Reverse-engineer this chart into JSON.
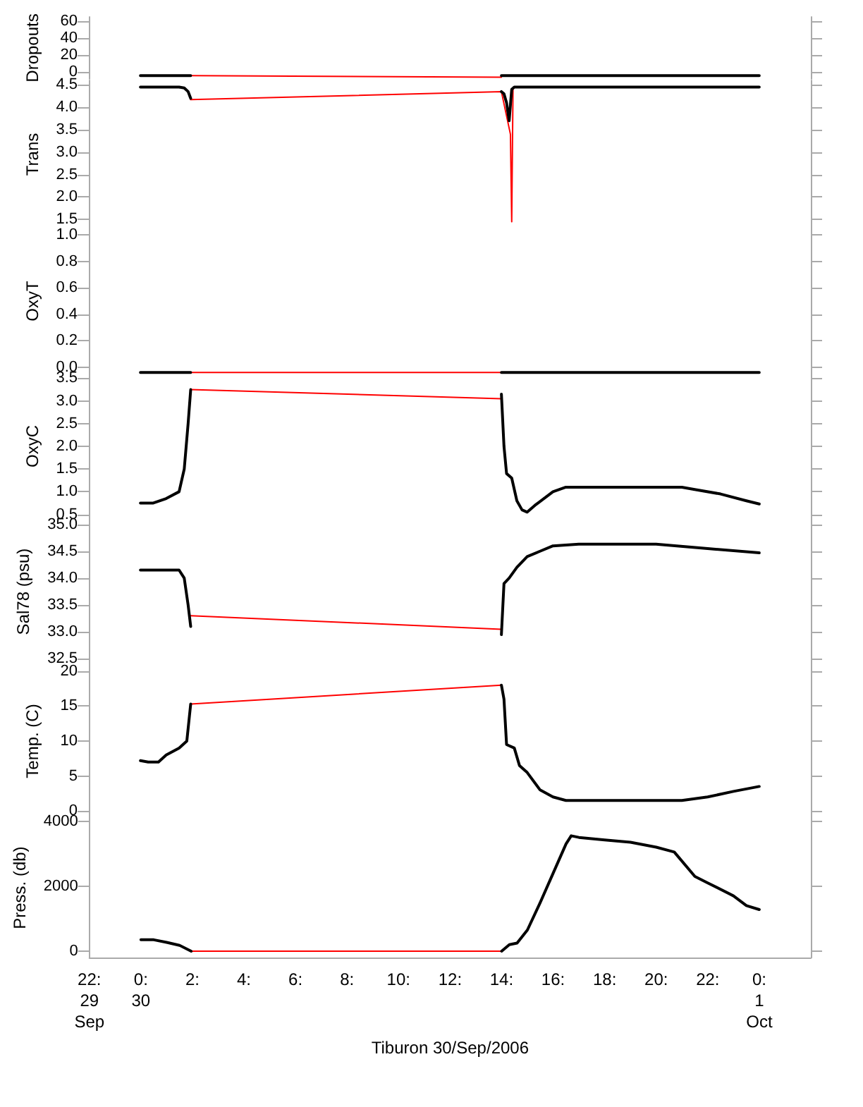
{
  "chart_data": [
    {
      "type": "line",
      "ylabel": "Dropouts",
      "xlim": [
        -2,
        26
      ],
      "ylim": [
        -8,
        65
      ],
      "yticks": [
        0,
        20,
        40,
        60
      ],
      "tick_labels": "y",
      "series": [
        {
          "color": "#000000",
          "x": [
            0,
            0.5,
            1,
            1.5,
            1.95,
            8,
            14,
            14.5,
            16,
            18,
            20,
            22,
            24
          ],
          "values": [
            -4,
            -4,
            -4,
            -4,
            -4,
            null,
            -4,
            -4,
            -4,
            -4,
            -4,
            -4,
            -4
          ]
        },
        {
          "color": "#ff0000",
          "x": [
            1.95,
            14
          ],
          "values": [
            -4,
            -6
          ]
        }
      ]
    },
    {
      "type": "line",
      "ylabel": "Trans",
      "xlim": [
        -2,
        26
      ],
      "ylim": [
        1.3,
        4.6
      ],
      "yticks": [
        {
          "value": 1.5,
          "label": "1.5"
        },
        {
          "value": 2,
          "label": "2.0"
        },
        {
          "value": 2.5,
          "label": "2.5"
        },
        {
          "value": 3,
          "label": "3.0"
        },
        {
          "value": 3.5,
          "label": "3.5"
        },
        {
          "value": 4,
          "label": "4.0"
        },
        {
          "value": 4.5,
          "label": "4.5"
        }
      ],
      "tick_labels": "y",
      "series": [
        {
          "color": "#000000",
          "x": [
            0,
            0.5,
            1,
            1.5,
            1.7,
            1.85,
            1.95,
            8,
            14,
            14.1,
            14.2,
            14.3,
            14.4,
            14.5,
            15,
            16,
            18,
            20,
            22,
            24
          ],
          "values": [
            4.45,
            4.45,
            4.45,
            4.45,
            4.43,
            4.35,
            4.2,
            null,
            4.35,
            4.3,
            4.1,
            3.7,
            4.4,
            4.45,
            4.45,
            4.45,
            4.45,
            4.45,
            4.45,
            4.45
          ]
        },
        {
          "color": "#ff0000",
          "x": [
            1.95,
            14,
            14.35,
            14.4,
            14.45,
            14.5
          ],
          "values": [
            4.17,
            4.35,
            3.4,
            1.45,
            4.4,
            4.45
          ]
        }
      ]
    },
    {
      "type": "line",
      "ylabel": "OxyT",
      "xlim": [
        -2,
        26
      ],
      "ylim": [
        -0.05,
        1.05
      ],
      "yticks": [
        {
          "value": 0,
          "label": "0.0"
        },
        {
          "value": 0.2,
          "label": "0.2"
        },
        {
          "value": 0.4,
          "label": "0.4"
        },
        {
          "value": 0.6,
          "label": "0.6"
        },
        {
          "value": 0.8,
          "label": "0.8"
        },
        {
          "value": 1,
          "label": "1.0"
        }
      ],
      "tick_labels": "y",
      "series": [
        {
          "color": "#000000",
          "x": [
            0,
            1.95,
            8,
            14,
            24
          ],
          "values": [
            -0.04,
            -0.04,
            null,
            -0.04,
            -0.04
          ]
        },
        {
          "color": "#ff0000",
          "x": [
            1.95,
            14
          ],
          "values": [
            -0.04,
            -0.04
          ]
        }
      ]
    },
    {
      "type": "line",
      "ylabel": "OxyC",
      "xlim": [
        -2,
        26
      ],
      "ylim": [
        0.4,
        3.6
      ],
      "yticks": [
        {
          "value": 0.5,
          "label": "0.5"
        },
        {
          "value": 1,
          "label": "1.0"
        },
        {
          "value": 1.5,
          "label": "1.5"
        },
        {
          "value": 2,
          "label": "2.0"
        },
        {
          "value": 2.5,
          "label": "2.5"
        },
        {
          "value": 3,
          "label": "3.0"
        },
        {
          "value": 3.5,
          "label": "3.5"
        }
      ],
      "tick_labels": "y",
      "series": [
        {
          "color": "#000000",
          "x": [
            0,
            0.5,
            1,
            1.5,
            1.7,
            1.85,
            1.95,
            8,
            14,
            14.1,
            14.2,
            14.4,
            14.6,
            14.8,
            15,
            15.3,
            16,
            16.5,
            18,
            20,
            21,
            21.5,
            22.5,
            23.5,
            24
          ],
          "values": [
            0.75,
            0.75,
            0.85,
            1,
            1.5,
            2.5,
            3.25,
            null,
            3.15,
            2,
            1.4,
            1.3,
            0.8,
            0.6,
            0.55,
            0.7,
            1,
            1.1,
            1.1,
            1.1,
            1.1,
            1.05,
            0.95,
            0.8,
            0.73
          ]
        },
        {
          "color": "#ff0000",
          "x": [
            1.95,
            14
          ],
          "values": [
            3.25,
            3.05
          ]
        }
      ]
    },
    {
      "type": "line",
      "ylabel": "Sal78 (psu)",
      "xlim": [
        -2,
        26
      ],
      "ylim": [
        32.4,
        35.1
      ],
      "yticks": [
        {
          "value": 32.5,
          "label": "32.5"
        },
        {
          "value": 33,
          "label": "33.0"
        },
        {
          "value": 33.5,
          "label": "33.5"
        },
        {
          "value": 34,
          "label": "34.0"
        },
        {
          "value": 34.5,
          "label": "34.5"
        },
        {
          "value": 35,
          "label": "35.0"
        }
      ],
      "tick_labels": "y",
      "series": [
        {
          "color": "#000000",
          "x": [
            0,
            0.5,
            1,
            1.5,
            1.7,
            1.85,
            1.95,
            8,
            14,
            14.1,
            14.3,
            14.6,
            15,
            15.5,
            16,
            17,
            18,
            20,
            22,
            24
          ],
          "values": [
            34.15,
            34.15,
            34.15,
            34.15,
            34,
            33.5,
            33.1,
            null,
            32.95,
            33.9,
            34,
            34.2,
            34.4,
            34.5,
            34.6,
            34.63,
            34.63,
            34.63,
            34.55,
            34.47
          ]
        },
        {
          "color": "#ff0000",
          "x": [
            1.95,
            14
          ],
          "values": [
            33.3,
            33.05
          ]
        }
      ]
    },
    {
      "type": "line",
      "ylabel": "Temp. (C)",
      "xlim": [
        -2,
        26
      ],
      "ylim": [
        -1,
        21
      ],
      "yticks": [
        0,
        5,
        10,
        15,
        20
      ],
      "tick_labels": "y",
      "series": [
        {
          "color": "#000000",
          "x": [
            0,
            0.3,
            0.7,
            1,
            1.5,
            1.8,
            1.95,
            8,
            14,
            14.1,
            14.2,
            14.5,
            14.7,
            15,
            15.5,
            16,
            16.5,
            18,
            20,
            21,
            22,
            23,
            24
          ],
          "values": [
            7.2,
            7,
            7,
            8,
            9,
            10,
            15.3,
            null,
            18,
            16,
            9.5,
            9,
            6.5,
            5.5,
            3,
            2,
            1.5,
            1.5,
            1.5,
            1.5,
            2,
            2.8,
            3.5
          ]
        },
        {
          "color": "#ff0000",
          "x": [
            1.95,
            14
          ],
          "values": [
            15.3,
            18
          ]
        }
      ]
    },
    {
      "type": "line",
      "ylabel": "Press. (db)",
      "xlabel": "Tiburon 30/Sep/2006",
      "xlim": [
        -2,
        26
      ],
      "ylim": [
        -200,
        4100
      ],
      "yticks": [
        0,
        2000,
        4000
      ],
      "xticks": [
        {
          "value": -2,
          "label": "22:\n29\nSep"
        },
        {
          "value": 0,
          "label": "0:\n30"
        },
        {
          "value": 2,
          "label": "2:"
        },
        {
          "value": 4,
          "label": "4:"
        },
        {
          "value": 6,
          "label": "6:"
        },
        {
          "value": 8,
          "label": "8:"
        },
        {
          "value": 10,
          "label": "10:"
        },
        {
          "value": 12,
          "label": "12:"
        },
        {
          "value": 14,
          "label": "14:"
        },
        {
          "value": 16,
          "label": "16:"
        },
        {
          "value": 18,
          "label": "18:"
        },
        {
          "value": 20,
          "label": "20:"
        },
        {
          "value": 22,
          "label": "22:"
        },
        {
          "value": 24,
          "label": "0:\n1\nOct"
        }
      ],
      "series": [
        {
          "color": "#000000",
          "x": [
            0,
            0.5,
            1,
            1.5,
            1.95,
            8,
            14,
            14.3,
            14.6,
            15,
            15.5,
            16,
            16.5,
            16.7,
            17,
            18,
            19,
            20,
            20.7,
            21.5,
            22,
            23,
            23.5,
            24
          ],
          "values": [
            350,
            350,
            270,
            180,
            0,
            null,
            0,
            200,
            250,
            650,
            1500,
            2400,
            3300,
            3550,
            3500,
            3420,
            3350,
            3200,
            3050,
            2300,
            2100,
            1700,
            1400,
            1280
          ]
        },
        {
          "color": "#ff0000",
          "x": [
            1.95,
            14
          ],
          "values": [
            0,
            0
          ]
        }
      ]
    }
  ]
}
